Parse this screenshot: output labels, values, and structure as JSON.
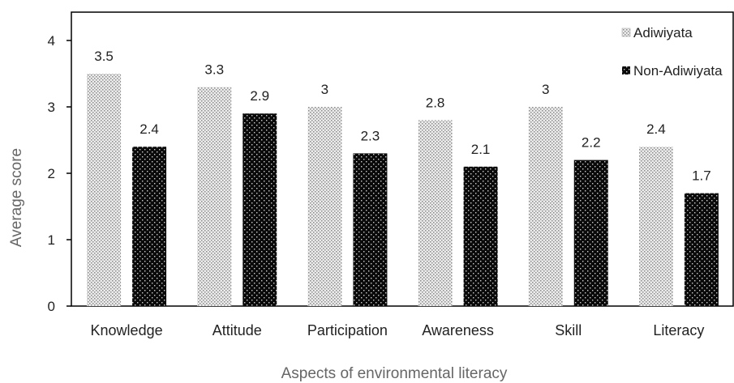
{
  "chart_data": {
    "type": "bar",
    "title": "",
    "xlabel": "Aspects of environmental literacy",
    "ylabel": "Average score",
    "ylim": [
      0,
      4
    ],
    "yticks": [
      0,
      1,
      2,
      3,
      4
    ],
    "grid": false,
    "legend_position": "top-right",
    "categories": [
      "Knowledge",
      "Attitude",
      "Participation",
      "Awareness",
      "Skill",
      "Literacy"
    ],
    "series": [
      {
        "name": "Adiwiyata",
        "values": [
          3.5,
          3.3,
          3,
          2.8,
          3,
          2.4
        ],
        "labels": [
          "3.5",
          "3.3",
          "3",
          "2.8",
          "3",
          "2.4"
        ],
        "pattern": "light-dotted",
        "fill": "#e8e8e8",
        "dot": "#8a8a8a"
      },
      {
        "name": "Non-Adiwiyata",
        "values": [
          2.4,
          2.9,
          2.3,
          2.1,
          2.2,
          1.7
        ],
        "labels": [
          "2.4",
          "2.9",
          "2.3",
          "2.1",
          "2.2",
          "1.7"
        ],
        "pattern": "dark-dotted",
        "fill": "#0a0a0a",
        "dot": "#d0d0d0"
      }
    ]
  }
}
